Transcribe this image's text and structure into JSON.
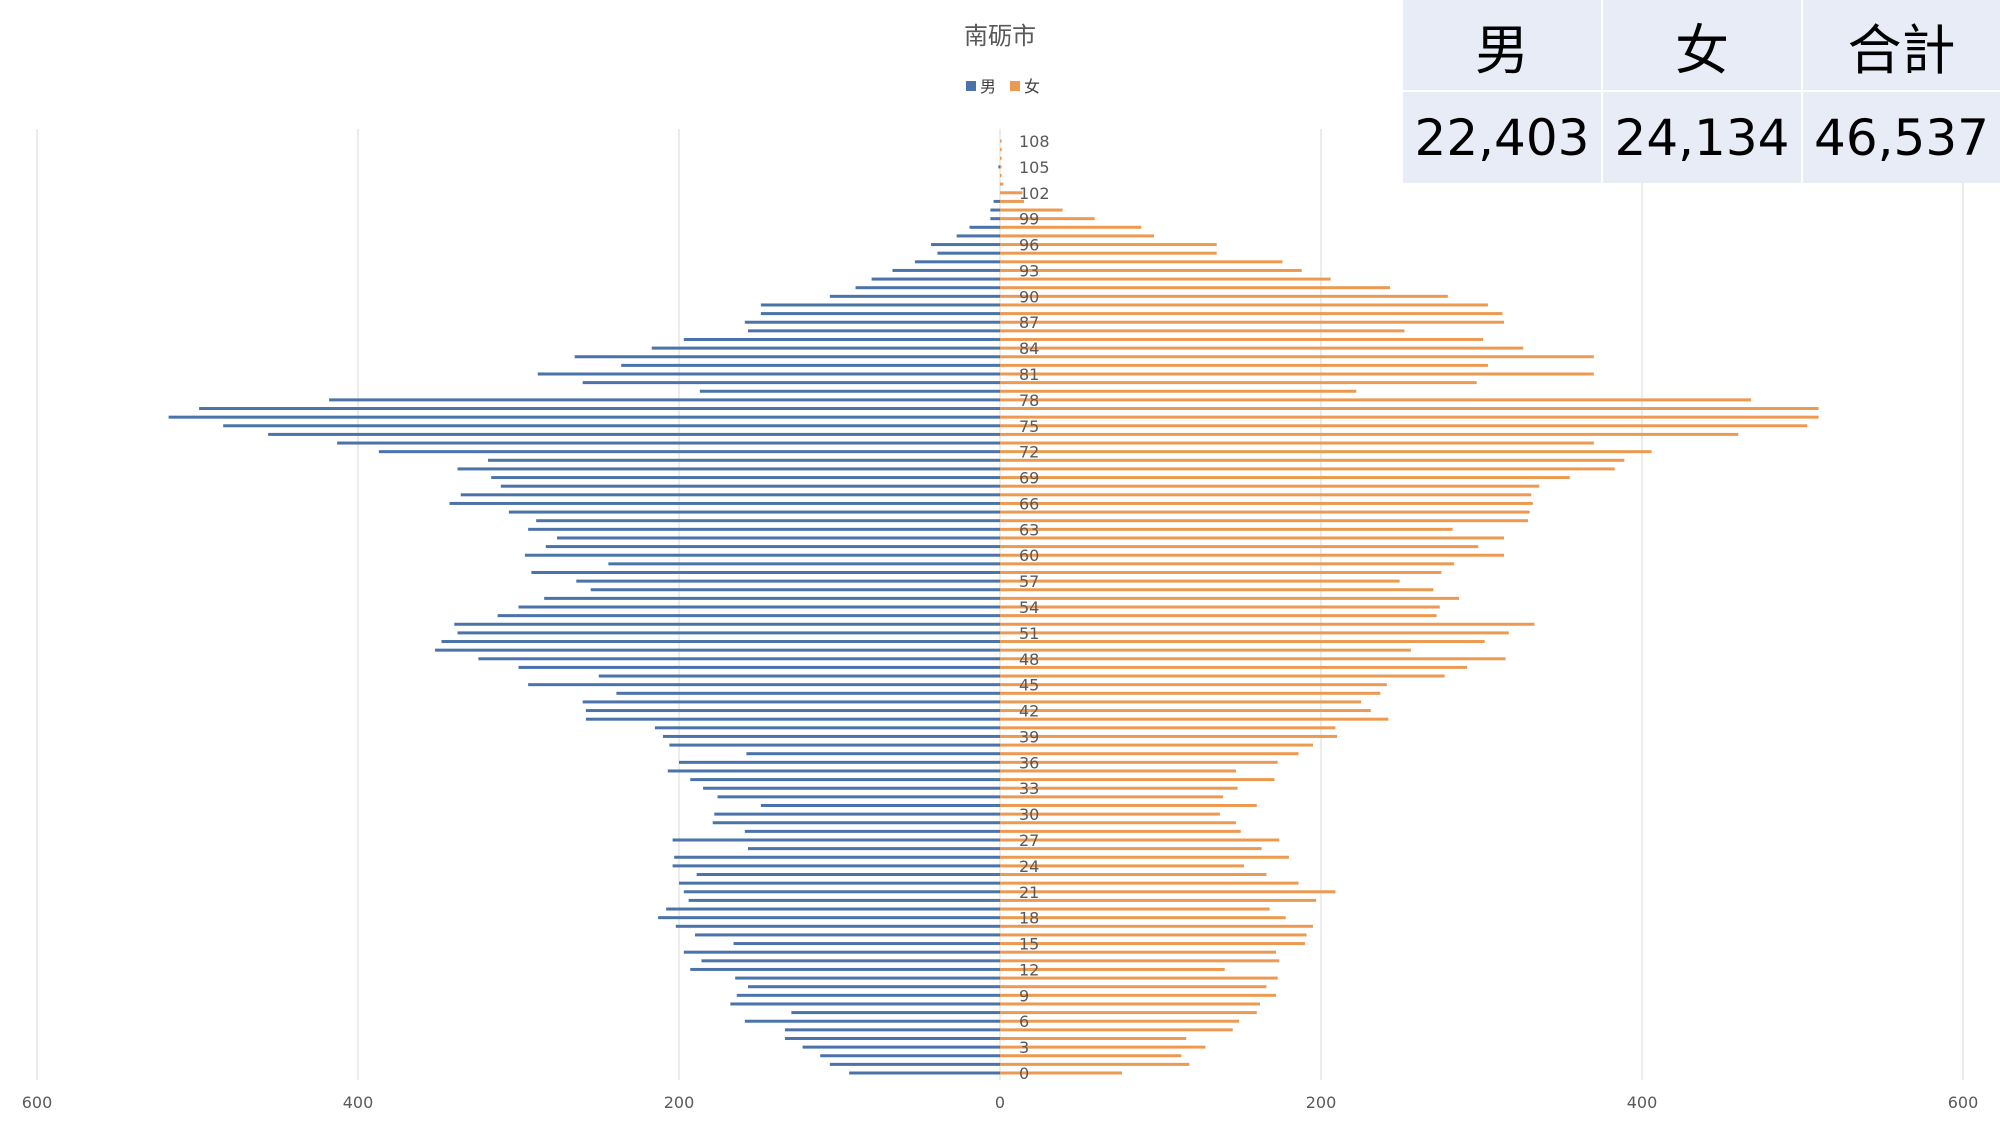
{
  "chart_data": {
    "type": "bar",
    "orientation": "horizontal-population-pyramid",
    "title": "南砺市",
    "legend_placement": "top",
    "legend": [
      "男",
      "女"
    ],
    "colors": {
      "male": "#4a73aa",
      "female": "#ec9a52"
    },
    "xlim": [
      -600,
      600
    ],
    "x_ticks": [
      {
        "v": -600,
        "label": "600"
      },
      {
        "v": -400,
        "label": "400"
      },
      {
        "v": -200,
        "label": "200"
      },
      {
        "v": 0,
        "label": "0"
      },
      {
        "v": 200,
        "label": "200"
      },
      {
        "v": 400,
        "label": "400"
      },
      {
        "v": 600,
        "label": "600"
      }
    ],
    "grid": true,
    "age_label_step": 3,
    "ages_min": 0,
    "ages_max": 108,
    "series": [
      {
        "name": "男",
        "values": [
          94,
          106,
          112,
          123,
          134,
          134,
          159,
          130,
          168,
          164,
          157,
          165,
          193,
          186,
          197,
          166,
          190,
          202,
          213,
          208,
          194,
          197,
          200,
          189,
          204,
          203,
          157,
          204,
          159,
          179,
          178,
          149,
          176,
          185,
          193,
          207,
          200,
          158,
          206,
          210,
          215,
          258,
          258,
          260,
          239,
          294,
          250,
          300,
          325,
          352,
          348,
          338,
          340,
          313,
          300,
          284,
          255,
          264,
          292,
          244,
          296,
          283,
          276,
          294,
          289,
          306,
          343,
          336,
          311,
          317,
          338,
          319,
          387,
          413,
          456,
          484,
          518,
          499,
          418,
          187,
          260,
          288,
          236,
          265,
          217,
          197,
          157,
          159,
          149,
          149,
          106,
          90,
          80,
          67,
          53,
          39,
          43,
          27,
          19,
          6,
          6,
          4,
          0,
          0,
          0,
          1,
          0,
          0,
          0
        ]
      },
      {
        "name": "女",
        "values": [
          76,
          118,
          113,
          128,
          116,
          145,
          149,
          160,
          162,
          172,
          166,
          173,
          140,
          174,
          172,
          190,
          191,
          195,
          178,
          168,
          197,
          209,
          186,
          166,
          152,
          180,
          163,
          174,
          150,
          147,
          137,
          160,
          139,
          148,
          171,
          147,
          173,
          186,
          195,
          210,
          209,
          242,
          231,
          225,
          237,
          241,
          277,
          291,
          315,
          256,
          302,
          317,
          333,
          272,
          274,
          286,
          270,
          249,
          275,
          283,
          314,
          298,
          314,
          282,
          329,
          330,
          332,
          331,
          336,
          355,
          383,
          389,
          406,
          370,
          460,
          503,
          510,
          510,
          468,
          222,
          297,
          370,
          304,
          370,
          326,
          301,
          252,
          314,
          313,
          304,
          279,
          243,
          206,
          188,
          176,
          135,
          135,
          96,
          88,
          59,
          39,
          15,
          14,
          2,
          1,
          1,
          1,
          1,
          1
        ]
      }
    ]
  },
  "summary": {
    "headers": [
      "男",
      "女",
      "合計"
    ],
    "values": [
      "22,403",
      "24,134",
      "46,537"
    ]
  }
}
